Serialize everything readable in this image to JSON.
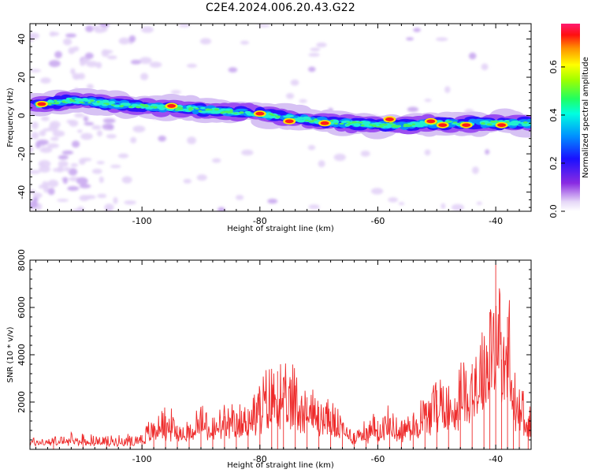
{
  "title": "C2E4.2024.006.20.43.G22",
  "chart_data": [
    {
      "type": "heatmap",
      "xlabel": "Height of straight line (km)",
      "ylabel": "Frequency (Hz)",
      "xlim": [
        -119,
        -34
      ],
      "ylim": [
        -50,
        48
      ],
      "xticks": [
        -100,
        -80,
        -60,
        -40
      ],
      "yticks": [
        -40,
        -20,
        0,
        20,
        40
      ],
      "colorbar": {
        "label": "Normalized spectral amplitude",
        "range": [
          0,
          0.78
        ],
        "ticks": [
          0.0,
          0.2,
          0.4,
          0.6
        ],
        "tick_labels": [
          "0.0",
          "0.2",
          "0.4",
          "0.6"
        ]
      },
      "ridge": {
        "x": [
          -119,
          -112,
          -105,
          -100,
          -95,
          -90,
          -85,
          -80,
          -75,
          -70,
          -65,
          -60,
          -55,
          -50,
          -45,
          -40,
          -35
        ],
        "y": [
          5,
          8,
          6,
          5,
          4,
          3,
          2,
          1,
          -1,
          -3,
          -4,
          -5,
          -5,
          -4,
          -4,
          -4,
          -4
        ],
        "peaks": [
          {
            "x": -117,
            "y": 6
          },
          {
            "x": -95,
            "y": 5
          },
          {
            "x": -80,
            "y": 1
          },
          {
            "x": -75,
            "y": -3
          },
          {
            "x": -69,
            "y": -4
          },
          {
            "x": -58,
            "y": -2
          },
          {
            "x": -51,
            "y": -3
          },
          {
            "x": -49,
            "y": -5
          },
          {
            "x": -45,
            "y": -5
          },
          {
            "x": -39,
            "y": -5
          }
        ]
      }
    },
    {
      "type": "line",
      "xlabel": "Height of straight line (km)",
      "ylabel": "SNR (10 * v/v)",
      "xlim": [
        -119,
        -34
      ],
      "ylim": [
        0,
        8000
      ],
      "xticks": [
        -100,
        -80,
        -60,
        -40
      ],
      "yticks": [
        2000,
        4000,
        6000,
        8000
      ],
      "series": [
        {
          "color": "#ee2a2a",
          "x": [
            -119,
            -115,
            -110,
            -106,
            -102,
            -100,
            -98,
            -96,
            -94,
            -92,
            -90,
            -88,
            -86,
            -84,
            -82,
            -80,
            -78,
            -77,
            -76,
            -74,
            -72,
            -70,
            -68,
            -66,
            -64,
            -62,
            -60,
            -58,
            -56,
            -54,
            -52,
            -50,
            -48,
            -46,
            -44,
            -42,
            -41,
            -40,
            -39,
            -38,
            -37,
            -36,
            -34.5
          ],
          "y": [
            400,
            450,
            500,
            420,
            480,
            600,
            1100,
            1400,
            1000,
            900,
            1600,
            1100,
            1400,
            1300,
            1700,
            2200,
            2800,
            3300,
            2400,
            2700,
            2200,
            1800,
            1600,
            1100,
            700,
            900,
            1200,
            1300,
            1100,
            1400,
            1900,
            2500,
            2300,
            2900,
            3600,
            4200,
            5800,
            7800,
            3800,
            5600,
            2600,
            2300,
            1300
          ]
        }
      ]
    }
  ]
}
